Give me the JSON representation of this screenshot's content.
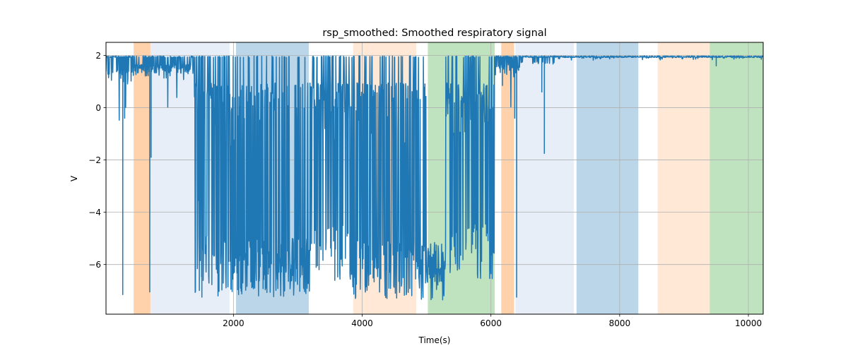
{
  "chart_data": {
    "type": "line",
    "title": "rsp_smoothed: Smoothed respiratory signal",
    "xlabel": "Time(s)",
    "ylabel": "V",
    "xlim": [
      20,
      10230
    ],
    "ylim": [
      -7.9,
      2.5
    ],
    "grid": true,
    "x_ticks": [
      2000,
      4000,
      6000,
      8000,
      10000
    ],
    "x_tick_labels": [
      "2000",
      "4000",
      "6000",
      "8000",
      "10000"
    ],
    "y_ticks": [
      2,
      0,
      -2,
      -4,
      -6
    ],
    "y_tick_labels": [
      "2",
      "0",
      "−2",
      "−4",
      "−6"
    ],
    "line_color": "#1f77b4",
    "regions": [
      {
        "x0": 450,
        "x1": 710,
        "color": "#ff7f0e",
        "opacity": 0.35
      },
      {
        "x0": 710,
        "x1": 1940,
        "color": "#aec7e8",
        "opacity": 0.3
      },
      {
        "x0": 2040,
        "x1": 3170,
        "color": "#1f77b4",
        "opacity": 0.3
      },
      {
        "x0": 3860,
        "x1": 4840,
        "color": "#ff7f0e",
        "opacity": 0.17
      },
      {
        "x0": 5020,
        "x1": 6060,
        "color": "#2ca02c",
        "opacity": 0.3
      },
      {
        "x0": 6160,
        "x1": 6360,
        "color": "#ff7f0e",
        "opacity": 0.35
      },
      {
        "x0": 6380,
        "x1": 7290,
        "color": "#aec7e8",
        "opacity": 0.3
      },
      {
        "x0": 7330,
        "x1": 8290,
        "color": "#1f77b4",
        "opacity": 0.3
      },
      {
        "x0": 8590,
        "x1": 9400,
        "color": "#ff7f0e",
        "opacity": 0.17
      },
      {
        "x0": 9400,
        "x1": 10230,
        "color": "#2ca02c",
        "opacity": 0.3
      }
    ],
    "series": [
      {
        "segments": [
          {
            "x0": 20,
            "x1": 450,
            "density": 0.35,
            "minDepth": 0.5,
            "maxDepth": 2.5,
            "deep": 0.02,
            "seed": 1
          },
          {
            "x0": 450,
            "x1": 1400,
            "density": 0.6,
            "minDepth": 0.3,
            "maxDepth": 2.0,
            "deep": 0.03,
            "seed": 2
          },
          {
            "x0": 1400,
            "x1": 2000,
            "density": 0.8,
            "minDepth": 1.0,
            "maxDepth": 9.1,
            "deep": 0.55,
            "seed": 3
          },
          {
            "x0": 2000,
            "x1": 3200,
            "density": 0.9,
            "minDepth": 1.0,
            "maxDepth": 9.2,
            "deep": 0.7,
            "seed": 4
          },
          {
            "x0": 3200,
            "x1": 3850,
            "density": 0.75,
            "minDepth": 1.0,
            "maxDepth": 8.6,
            "deep": 0.4,
            "seed": 5
          },
          {
            "x0": 3850,
            "x1": 5000,
            "density": 0.85,
            "minDepth": 1.0,
            "maxDepth": 9.3,
            "deep": 0.6,
            "seed": 6
          },
          {
            "x0": 5000,
            "x1": 5300,
            "density": 1.0,
            "minDepth": 8.5,
            "maxDepth": 9.4,
            "deep": 1.0,
            "seed": 7
          },
          {
            "x0": 5300,
            "x1": 6060,
            "density": 0.8,
            "minDepth": 1.0,
            "maxDepth": 8.5,
            "deep": 0.45,
            "seed": 8
          },
          {
            "x0": 6060,
            "x1": 6450,
            "density": 0.4,
            "minDepth": 0.3,
            "maxDepth": 2.0,
            "deep": 0.05,
            "seed": 9
          },
          {
            "x0": 6450,
            "x1": 7000,
            "density": 0.15,
            "minDepth": 0.2,
            "maxDepth": 0.8,
            "deep": 0.0,
            "seed": 10
          },
          {
            "x0": 7000,
            "x1": 10230,
            "density": 0.05,
            "minDepth": 0.05,
            "maxDepth": 0.3,
            "deep": 0.0,
            "seed": 11
          }
        ],
        "spikes": [
          {
            "x": 280,
            "y": -7.15
          },
          {
            "x": 310,
            "y": -0.4
          },
          {
            "x": 700,
            "y": -7.05
          },
          {
            "x": 720,
            "y": -1.9
          },
          {
            "x": 1460,
            "y": -3.55
          },
          {
            "x": 1510,
            "y": -7.25
          },
          {
            "x": 1760,
            "y": -7.2
          },
          {
            "x": 6180,
            "y": 0.85
          },
          {
            "x": 6370,
            "y": -0.4
          },
          {
            "x": 6400,
            "y": -7.25
          },
          {
            "x": 6790,
            "y": 0.6
          },
          {
            "x": 6830,
            "y": -1.75
          },
          {
            "x": 9500,
            "y": 1.6
          }
        ]
      }
    ]
  }
}
